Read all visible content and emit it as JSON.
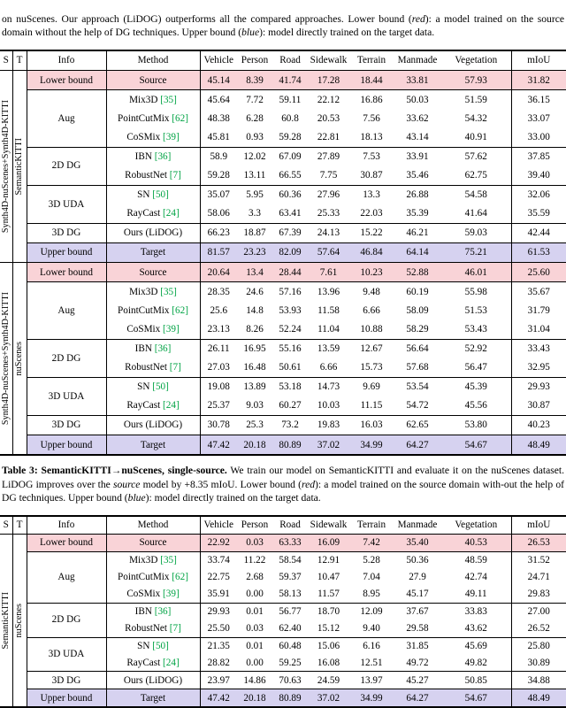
{
  "colors": {
    "lower_bg": "#f9d3d7",
    "upper_bg": "#d6d2f0",
    "cite_green": "#00a344"
  },
  "captions": {
    "top": {
      "p1": "on nuScenes. Our approach (LiDOG) outperforms all the compared approaches. Lower bound (",
      "red": "red",
      "p2": "): a model trained on the source domain without the help of DG techniques. Upper bound (",
      "blue": "blue",
      "p3": "): model directly trained on the target data."
    },
    "mid": {
      "heading": "Table 3: SemanticKITTI→nuScenes, single-source.",
      "p1": " We train our model on SemanticKITTI and evaluate it on the nuScenes dataset. LiDOG improves over the ",
      "source_word": "source",
      "p2": " model by +8.35 mIoU. Lower bound (",
      "red": "red",
      "p3": "): a model trained on the source domain with-out the help of DG techniques. Upper bound (",
      "blue": "blue",
      "p4": "): model directly trained on the target data."
    }
  },
  "table_multi": {
    "columns": [
      "S",
      "T",
      "Info",
      "Method",
      "Vehicle",
      "Person",
      "Road",
      "Sidewalk",
      "Terrain",
      "Manmade",
      "Vegetation",
      "mIoU"
    ],
    "blocks": [
      {
        "source": "Synth4D-nuScenes+Synth4D-KITTI",
        "target": "SemanticKITTI",
        "lower": {
          "label": "Lower bound",
          "method": "Source",
          "vals": [
            "45.14",
            "8.39",
            "41.74",
            "17.28",
            "18.44",
            "33.81",
            "57.93",
            "31.82"
          ],
          "bold": []
        },
        "groups": [
          {
            "name": "Aug",
            "rows": [
              {
                "method": "Mix3D",
                "cite": "[35]",
                "vals": [
                  "45.64",
                  "7.72",
                  "59.11",
                  "22.12",
                  "16.86",
                  "50.03",
                  "51.59",
                  "36.15"
                ],
                "bold": [
                  5
                ]
              },
              {
                "method": "PointCutMix",
                "cite": "[62]",
                "vals": [
                  "48.38",
                  "6.28",
                  "60.8",
                  "20.53",
                  "7.56",
                  "33.62",
                  "54.32",
                  "33.07"
                ],
                "bold": []
              },
              {
                "method": "CoSMix",
                "cite": "[39]",
                "vals": [
                  "45.81",
                  "0.93",
                  "59.28",
                  "22.81",
                  "18.13",
                  "43.14",
                  "40.91",
                  "33.00"
                ],
                "bold": []
              }
            ]
          },
          {
            "name": "2D DG",
            "rows": [
              {
                "method": "IBN",
                "cite": "[36]",
                "vals": [
                  "58.9",
                  "12.02",
                  "67.09",
                  "27.89",
                  "7.53",
                  "33.91",
                  "57.62",
                  "37.85"
                ],
                "bold": []
              },
              {
                "method": "RobustNet",
                "cite": "[7]",
                "vals": [
                  "59.28",
                  "13.11",
                  "66.55",
                  "7.75",
                  "30.87",
                  "35.46",
                  "62.75",
                  "39.40"
                ],
                "bold": [
                  4,
                  6
                ]
              }
            ]
          },
          {
            "name": "3D UDA",
            "rows": [
              {
                "method": "SN",
                "cite": "[50]",
                "vals": [
                  "35.07",
                  "5.95",
                  "60.36",
                  "27.96",
                  "13.3",
                  "26.88",
                  "54.58",
                  "32.06"
                ],
                "bold": [
                  3
                ]
              },
              {
                "method": "RayCast",
                "cite": "[24]",
                "vals": [
                  "58.06",
                  "3.3",
                  "63.41",
                  "25.33",
                  "22.03",
                  "35.39",
                  "41.64",
                  "35.59"
                ],
                "bold": []
              }
            ]
          },
          {
            "name": "3D DG",
            "rows": [
              {
                "method": "Ours (LiDOG)",
                "cite": "",
                "bold_method": true,
                "vals": [
                  "66.23",
                  "18.87",
                  "67.39",
                  "24.13",
                  "15.22",
                  "46.21",
                  "59.03",
                  "42.44"
                ],
                "bold": [
                  0,
                  1,
                  2,
                  7
                ]
              }
            ]
          }
        ],
        "upper": {
          "label": "Upper bound",
          "method": "Target",
          "vals": [
            "81.57",
            "23.23",
            "82.09",
            "57.64",
            "46.84",
            "64.14",
            "75.21",
            "61.53"
          ],
          "bold": []
        }
      },
      {
        "source": "Synth4D-nuScenes+Synth4D-KITTI",
        "target": "nuScenes",
        "lower": {
          "label": "Lower bound",
          "method": "Source",
          "vals": [
            "20.64",
            "13.4",
            "28.44",
            "7.61",
            "10.23",
            "52.88",
            "46.01",
            "25.60"
          ],
          "bold": []
        },
        "groups": [
          {
            "name": "Aug",
            "rows": [
              {
                "method": "Mix3D",
                "cite": "[35]",
                "vals": [
                  "28.35",
                  "24.6",
                  "57.16",
                  "13.96",
                  "9.48",
                  "60.19",
                  "55.98",
                  "35.67"
                ],
                "bold": []
              },
              {
                "method": "PointCutMix",
                "cite": "[62]",
                "vals": [
                  "25.6",
                  "14.8",
                  "53.93",
                  "11.58",
                  "6.66",
                  "58.09",
                  "51.53",
                  "31.79"
                ],
                "bold": []
              },
              {
                "method": "CoSMix",
                "cite": "[39]",
                "vals": [
                  "23.13",
                  "8.26",
                  "52.24",
                  "11.04",
                  "10.88",
                  "58.29",
                  "53.43",
                  "31.04"
                ],
                "bold": []
              }
            ]
          },
          {
            "name": "2D DG",
            "rows": [
              {
                "method": "IBN",
                "cite": "[36]",
                "vals": [
                  "26.11",
                  "16.95",
                  "55.16",
                  "13.59",
                  "12.67",
                  "56.64",
                  "52.92",
                  "33.43"
                ],
                "bold": []
              },
              {
                "method": "RobustNet",
                "cite": "[7]",
                "vals": [
                  "27.03",
                  "16.48",
                  "50.61",
                  "6.66",
                  "15.73",
                  "57.68",
                  "56.47",
                  "32.95"
                ],
                "bold": [
                  6
                ]
              }
            ]
          },
          {
            "name": "3D UDA",
            "rows": [
              {
                "method": "SN",
                "cite": "[50]",
                "vals": [
                  "19.08",
                  "13.89",
                  "53.18",
                  "14.73",
                  "9.69",
                  "53.54",
                  "45.39",
                  "29.93"
                ],
                "bold": []
              },
              {
                "method": "RayCast",
                "cite": "[24]",
                "vals": [
                  "25.37",
                  "9.03",
                  "60.27",
                  "10.03",
                  "11.15",
                  "54.72",
                  "45.56",
                  "30.87"
                ],
                "bold": []
              }
            ]
          },
          {
            "name": "3D DG",
            "rows": [
              {
                "method": "Ours (LiDOG)",
                "cite": "",
                "bold_method": true,
                "vals": [
                  "30.78",
                  "25.3",
                  "73.2",
                  "19.83",
                  "16.03",
                  "62.65",
                  "53.80",
                  "40.23"
                ],
                "bold": [
                  0,
                  1,
                  2,
                  3,
                  4,
                  5,
                  7
                ]
              }
            ]
          }
        ],
        "upper": {
          "label": "Upper bound",
          "method": "Target",
          "vals": [
            "47.42",
            "20.18",
            "80.89",
            "37.02",
            "34.99",
            "64.27",
            "54.67",
            "48.49"
          ],
          "bold": []
        }
      }
    ]
  },
  "table_single": {
    "columns": [
      "S",
      "T",
      "Info",
      "Method",
      "Vehicle",
      "Person",
      "Road",
      "Sidewalk",
      "Terrain",
      "Manmade",
      "Vegetation",
      "mIoU"
    ],
    "blocks": [
      {
        "source": "SemanticKITTI",
        "target": "nuScenes",
        "lower": {
          "label": "Lower bound",
          "method": "Source",
          "vals": [
            "22.92",
            "0.03",
            "63.33",
            "16.09",
            "7.42",
            "35.40",
            "40.53",
            "26.53"
          ],
          "bold": []
        },
        "groups": [
          {
            "name": "Aug",
            "rows": [
              {
                "method": "Mix3D",
                "cite": "[35]",
                "vals": [
                  "33.74",
                  "11.22",
                  "58.54",
                  "12.91",
                  "5.28",
                  "50.36",
                  "48.59",
                  "31.52"
                ],
                "bold": [
                  5
                ]
              },
              {
                "method": "PointCutMix",
                "cite": "[62]",
                "vals": [
                  "22.75",
                  "2.68",
                  "59.37",
                  "10.47",
                  "7.04",
                  "27.9",
                  "42.74",
                  "24.71"
                ],
                "bold": []
              },
              {
                "method": "CoSMix",
                "cite": "[39]",
                "vals": [
                  "35.91",
                  "0.00",
                  "58.13",
                  "11.57",
                  "8.95",
                  "45.17",
                  "49.11",
                  "29.83"
                ],
                "bold": [
                  0
                ]
              }
            ]
          },
          {
            "name": "2D DG",
            "rows": [
              {
                "method": "IBN",
                "cite": "[36]",
                "vals": [
                  "29.93",
                  "0.01",
                  "56.77",
                  "18.70",
                  "12.09",
                  "37.67",
                  "33.83",
                  "27.00"
                ],
                "bold": []
              },
              {
                "method": "RobustNet",
                "cite": "[7]",
                "vals": [
                  "25.50",
                  "0.03",
                  "62.40",
                  "15.12",
                  "9.40",
                  "29.58",
                  "43.62",
                  "26.52"
                ],
                "bold": []
              }
            ]
          },
          {
            "name": "3D UDA",
            "rows": [
              {
                "method": "SN",
                "cite": "[50]",
                "vals": [
                  "21.35",
                  "0.01",
                  "60.48",
                  "15.06",
                  "6.16",
                  "31.85",
                  "45.69",
                  "25.80"
                ],
                "bold": []
              },
              {
                "method": "RayCast",
                "cite": "[24]",
                "vals": [
                  "28.82",
                  "0.00",
                  "59.25",
                  "16.08",
                  "12.51",
                  "49.72",
                  "49.82",
                  "30.89"
                ],
                "bold": []
              }
            ]
          },
          {
            "name": "3D DG",
            "rows": [
              {
                "method": "Ours (LiDOG)",
                "cite": "",
                "bold_method": true,
                "vals": [
                  "23.97",
                  "14.86",
                  "70.63",
                  "24.59",
                  "13.97",
                  "45.27",
                  "50.85",
                  "34.88"
                ],
                "bold": [
                  1,
                  2,
                  3,
                  4,
                  6,
                  7
                ]
              }
            ]
          }
        ],
        "upper": {
          "label": "Upper bound",
          "method": "Target",
          "vals": [
            "47.42",
            "20.18",
            "80.89",
            "37.02",
            "34.99",
            "64.27",
            "54.67",
            "48.49"
          ],
          "bold": []
        }
      }
    ]
  }
}
